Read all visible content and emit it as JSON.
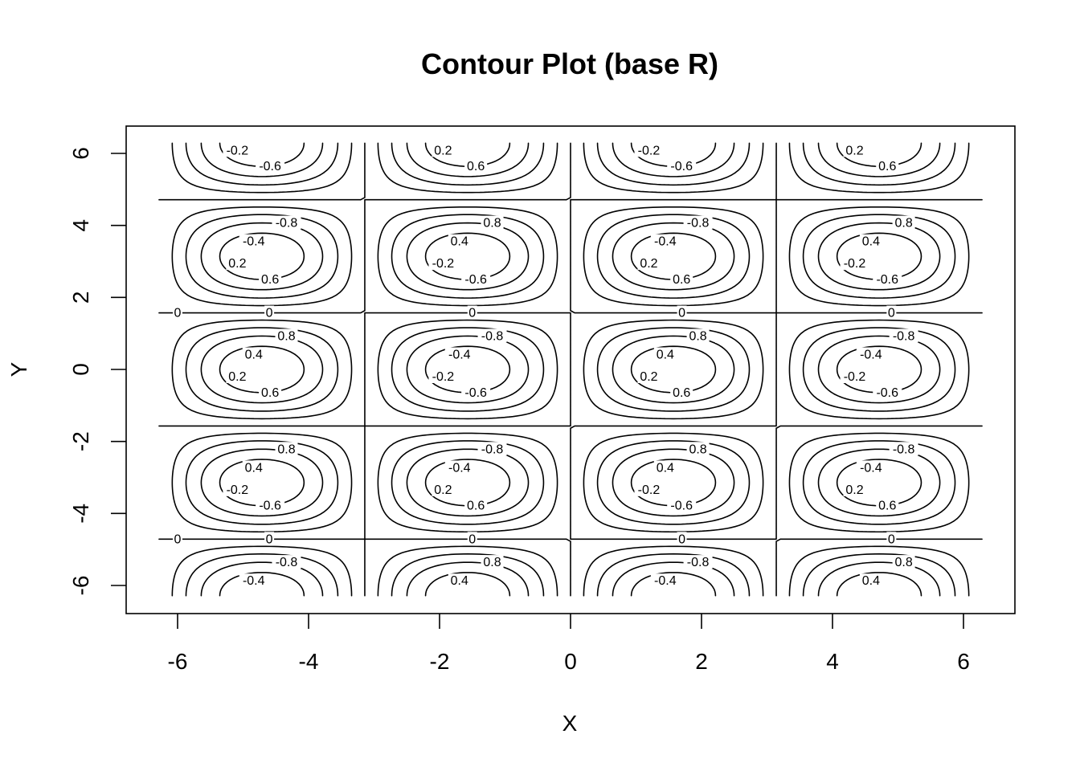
{
  "chart_data": {
    "type": "contour",
    "title": "Contour Plot (base R)",
    "xlabel": "X",
    "ylabel": "Y",
    "function": "z = sin(x) * cos(y)",
    "xlim": [
      -6.283,
      6.283
    ],
    "ylim": [
      -6.283,
      6.283
    ],
    "xticks": [
      -6,
      -4,
      -2,
      0,
      2,
      4,
      6
    ],
    "yticks": [
      -6,
      -4,
      -2,
      0,
      2,
      4,
      6
    ],
    "xtick_labels": [
      "-6",
      "-4",
      "-2",
      "0",
      "2",
      "4",
      "6"
    ],
    "ytick_labels": [
      "-6",
      "-4",
      "-2",
      "0",
      "2",
      "4",
      "6"
    ],
    "levels": [
      -0.8,
      -0.6,
      -0.4,
      -0.2,
      0,
      0.2,
      0.4,
      0.6,
      0.8
    ],
    "level_labels": [
      "-0.8",
      "-0.6",
      "-0.4",
      "-0.2",
      "0",
      "0.2",
      "0.4",
      "0.6",
      "0.8"
    ],
    "grid": false,
    "legend": "none"
  }
}
